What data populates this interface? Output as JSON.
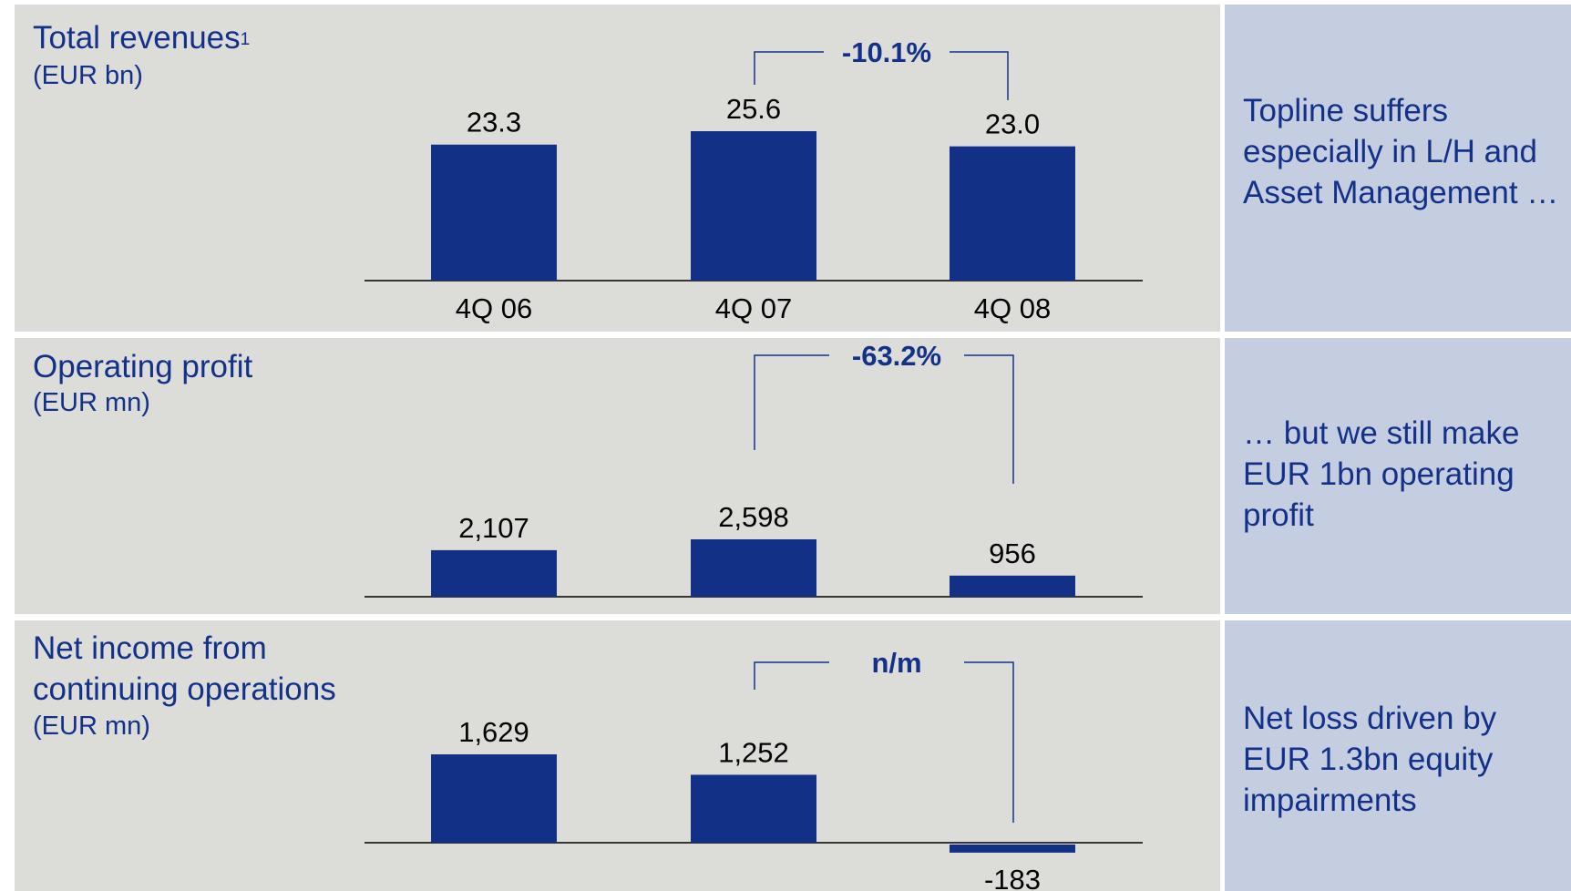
{
  "colors": {
    "bar": "#123086",
    "accent": "#14318a",
    "panel": "#dcdcd9",
    "note_panel": "#c5cde0",
    "axis": "#000000"
  },
  "chart_data": [
    {
      "type": "bar",
      "title": "Total revenues",
      "title_superscript": "1",
      "unit": "(EUR bn)",
      "categories": [
        "4Q 06",
        "4Q 07",
        "4Q 08"
      ],
      "values": [
        23.3,
        25.6,
        23.0
      ],
      "value_labels": [
        "23.3",
        "25.6",
        "23.0"
      ],
      "change": {
        "from": 1,
        "to": 2,
        "label": "-10.1%"
      },
      "ylim": [
        0,
        25.6
      ]
    },
    {
      "type": "bar",
      "title": "Operating profit",
      "unit": "(EUR mn)",
      "categories": [
        "4Q 06",
        "4Q 07",
        "4Q 08"
      ],
      "values": [
        2107,
        2598,
        956
      ],
      "value_labels": [
        "2,107",
        "2,598",
        "956"
      ],
      "change": {
        "from": 1,
        "to": 2,
        "label": "-63.2%"
      },
      "ylim": [
        0,
        2598
      ]
    },
    {
      "type": "bar",
      "title_lines": [
        "Net income from",
        "continuing operations"
      ],
      "unit": "(EUR mn)",
      "categories": [
        "4Q 06",
        "4Q 07",
        "4Q 08"
      ],
      "values": [
        1629,
        1252,
        -183
      ],
      "value_labels": [
        "1,629",
        "1,252",
        "-183"
      ],
      "change": {
        "from": 1,
        "to": 2,
        "label": "n/m"
      },
      "ylim": [
        -183,
        1629
      ]
    }
  ],
  "notes": [
    "Topline suffers especially in L/H and Asset Management …",
    "… but we still make EUR 1bn operating profit",
    "Net loss driven by EUR 1.3bn equity impairments"
  ]
}
